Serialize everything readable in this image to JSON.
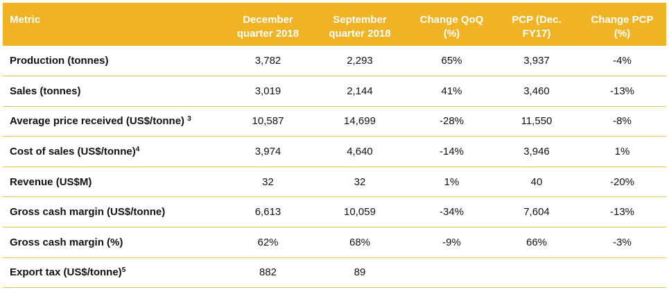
{
  "table": {
    "headers": [
      "Metric",
      "December quarter 2018",
      "September quarter 2018",
      "Change QoQ (%)",
      "PCP (Dec. FY17)",
      "Change PCP (%)"
    ],
    "header_lines": [
      [
        "Metric"
      ],
      [
        "December",
        "quarter 2018"
      ],
      [
        "September",
        "quarter 2018"
      ],
      [
        "Change QoQ",
        "(%)"
      ],
      [
        "PCP (Dec.",
        "FY17)"
      ],
      [
        "Change PCP",
        "(%)"
      ]
    ],
    "rows": [
      {
        "metric": "Production (tonnes)",
        "note": "",
        "values": [
          "3,782",
          "2,293",
          "65%",
          "3,937",
          "-4%"
        ]
      },
      {
        "metric": "Sales (tonnes)",
        "note": "",
        "values": [
          "3,019",
          "2,144",
          "41%",
          "3,460",
          "-13%"
        ]
      },
      {
        "metric": "Average price received (US$/tonne) ",
        "note": "3",
        "values": [
          "10,587",
          "14,699",
          "-28%",
          "11,550",
          "-8%"
        ]
      },
      {
        "metric": "Cost of sales (US$/tonne)",
        "note": "4",
        "values": [
          "3,974",
          "4,640",
          "-14%",
          "3,946",
          "1%"
        ]
      },
      {
        "metric": "Revenue (US$M)",
        "note": "",
        "values": [
          "32",
          "32",
          "1%",
          "40",
          "-20%"
        ]
      },
      {
        "metric": "Gross cash margin (US$/tonne)",
        "note": "",
        "values": [
          "6,613",
          "10,059",
          "-34%",
          "7,604",
          "-13%"
        ]
      },
      {
        "metric": "Gross cash margin (%)",
        "note": "",
        "values": [
          "62%",
          "68%",
          "-9%",
          "66%",
          "-3%"
        ]
      },
      {
        "metric": "Export tax (US$/tonne)",
        "note": "5",
        "values": [
          "882",
          "89",
          "",
          "",
          ""
        ]
      }
    ]
  },
  "colors": {
    "header_background": "#f0b323",
    "header_text": "#ffffff",
    "row_divider": "#f0c040"
  }
}
